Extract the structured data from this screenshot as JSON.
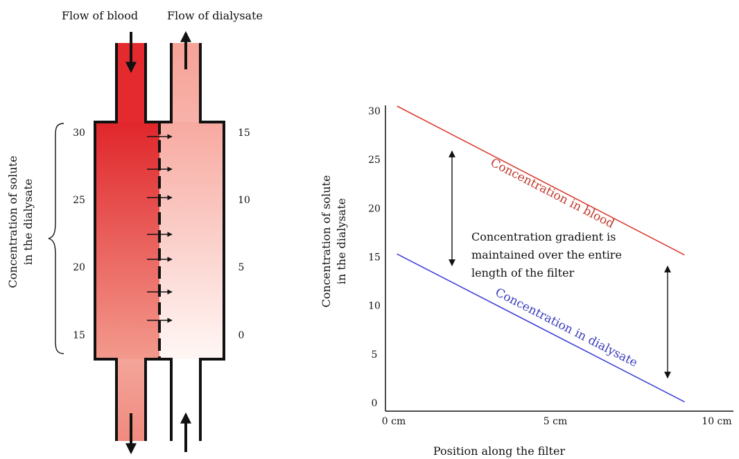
{
  "filter": {
    "flow_blood_label": "Flow of blood",
    "flow_dialysate_label": "Flow of dialysate",
    "left_axis_label_line1": "Concentration of solute",
    "left_axis_label_line2": "in the dialysate",
    "blood_ticks": [
      "30",
      "25",
      "20",
      "15"
    ],
    "dialysate_ticks": [
      "15",
      "10",
      "5",
      "0"
    ],
    "colors": {
      "blood": "#e0262b",
      "blood_light": "#f4a59a",
      "dialysate": "#f7a9a0",
      "dialysate_light": "#fdf2ef"
    },
    "icons": {
      "flow_arrow": "arrow-icon",
      "diffusion_arrow": "arrow-right-icon"
    }
  },
  "chart_data": {
    "type": "line",
    "xlabel": "Position along the filter",
    "ylabel_line1": "Concentration of solute",
    "ylabel_line2": "in the dialysate",
    "x_ticks": [
      "0 cm",
      "5 cm",
      "10 cm"
    ],
    "y_ticks": [
      "0",
      "5",
      "10",
      "15",
      "20",
      "25",
      "30"
    ],
    "xlim": [
      0,
      10
    ],
    "ylim": [
      0,
      30
    ],
    "series": [
      {
        "name": "Concentration in blood",
        "x": [
          0.1,
          9.0
        ],
        "y": [
          30.5,
          15.2
        ],
        "color": "#d93a2f"
      },
      {
        "name": "Concentration in dialysate",
        "x": [
          0.1,
          9.0
        ],
        "y": [
          15.3,
          0.1
        ],
        "color": "#4040d8"
      }
    ],
    "annotation": {
      "line1": "Concentration gradient is",
      "line2": "maintained over the entire",
      "line3": "length of the filter"
    }
  }
}
